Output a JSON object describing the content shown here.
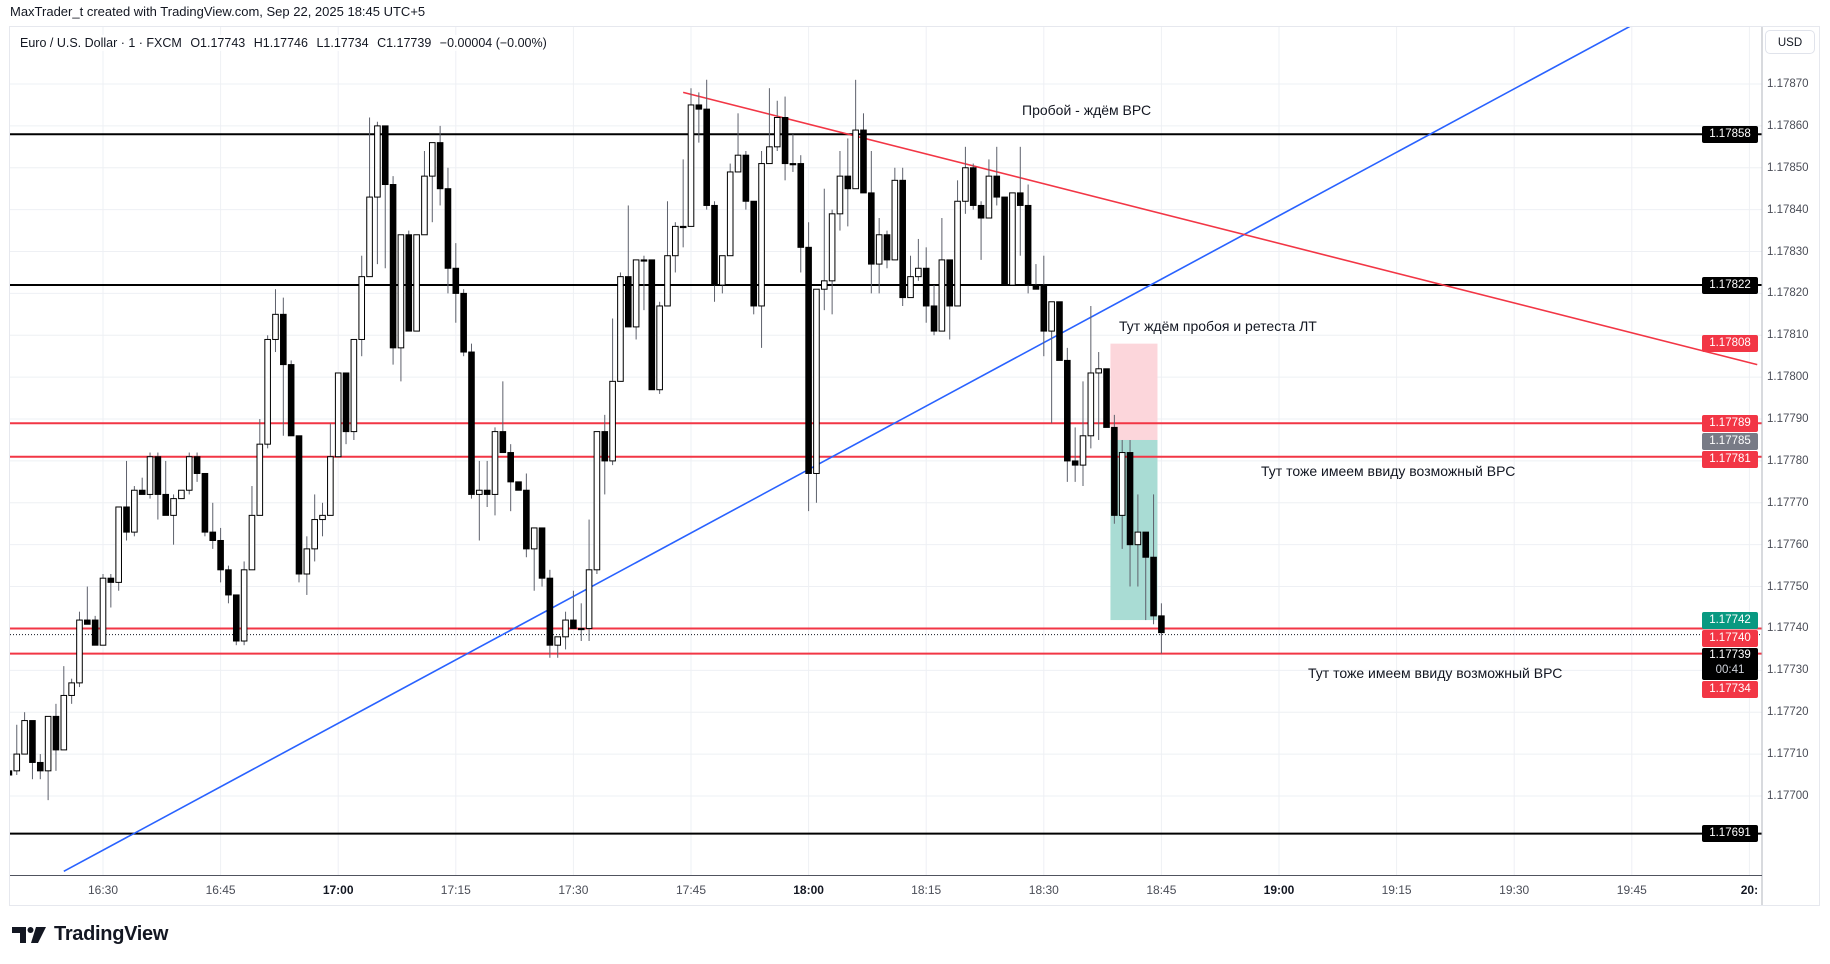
{
  "attribution": "MaxTrader_t created with TradingView.com, Sep 22, 2025 18:45 UTC+5",
  "legend": {
    "symbol": "Euro / U.S. Dollar · 1 · FXCM",
    "open": "O1.17743",
    "high": "H1.17746",
    "low": "L1.17734",
    "close": "C1.17739",
    "change": "−0.00004 (−0.00%)"
  },
  "currency_button": "USD",
  "brand": "TradingView",
  "colors": {
    "bull_body": "#ffffff",
    "bear_body": "#000000",
    "wick": "#5d606b",
    "level_black": "#000000",
    "level_red": "#f23645",
    "trend_blue": "#2962ff",
    "trend_red": "#f23645",
    "grid": "#eef0f4",
    "stop_zone": "#fcd6db",
    "target_zone": "#a9dcd4",
    "tag_green": "#089981",
    "tag_gray": "#787b86"
  },
  "chart_data": {
    "type": "candlestick",
    "symbol": "EURUSD",
    "interval_min": 1,
    "start_time": "16:18",
    "ylim": [
      1.1767,
      1.1789
    ],
    "price_ticks": [
      "1.17870",
      "1.17860",
      "1.17850",
      "1.17840",
      "1.17830",
      "1.17820",
      "1.17810",
      "1.17800",
      "1.17790",
      "1.17780",
      "1.17770",
      "1.17760",
      "1.17750",
      "1.17740",
      "1.17730",
      "1.17720",
      "1.17710",
      "1.17700"
    ],
    "time_labels": [
      {
        "text": "16:30",
        "time": "16:30",
        "bold": false
      },
      {
        "text": "16:45",
        "time": "16:45",
        "bold": false
      },
      {
        "text": "17:00",
        "time": "17:00",
        "bold": true
      },
      {
        "text": "17:15",
        "time": "17:15",
        "bold": false
      },
      {
        "text": "17:30",
        "time": "17:30",
        "bold": false
      },
      {
        "text": "17:45",
        "time": "17:45",
        "bold": false
      },
      {
        "text": "18:00",
        "time": "18:00",
        "bold": true
      },
      {
        "text": "18:15",
        "time": "18:15",
        "bold": false
      },
      {
        "text": "18:30",
        "time": "18:30",
        "bold": false
      },
      {
        "text": "18:45",
        "time": "18:45",
        "bold": false
      },
      {
        "text": "19:00",
        "time": "19:00",
        "bold": true
      },
      {
        "text": "19:15",
        "time": "19:15",
        "bold": false
      },
      {
        "text": "19:30",
        "time": "19:30",
        "bold": false
      },
      {
        "text": "19:45",
        "time": "19:45",
        "bold": false
      },
      {
        "text": "20:",
        "time": "20:00",
        "bold": true
      }
    ],
    "ohlc": [
      [
        1.17706,
        1.17707,
        1.17704,
        1.17705
      ],
      [
        1.17706,
        1.17717,
        1.17705,
        1.1771
      ],
      [
        1.1771,
        1.1772,
        1.1771,
        1.17718
      ],
      [
        1.17718,
        1.17718,
        1.17704,
        1.17708
      ],
      [
        1.17708,
        1.1771,
        1.17704,
        1.17706
      ],
      [
        1.17706,
        1.17719,
        1.17699,
        1.17719
      ],
      [
        1.17719,
        1.17722,
        1.17706,
        1.17711
      ],
      [
        1.17711,
        1.17731,
        1.17711,
        1.17724
      ],
      [
        1.17724,
        1.17728,
        1.17722,
        1.17727
      ],
      [
        1.17727,
        1.17744,
        1.17726,
        1.17742
      ],
      [
        1.17742,
        1.1775,
        1.17741,
        1.17741
      ],
      [
        1.17742,
        1.17743,
        1.17736,
        1.17736
      ],
      [
        1.17736,
        1.17753,
        1.17736,
        1.17752
      ],
      [
        1.17752,
        1.17753,
        1.17745,
        1.17751
      ],
      [
        1.17751,
        1.17769,
        1.17749,
        1.17769
      ],
      [
        1.17769,
        1.1778,
        1.17761,
        1.17763
      ],
      [
        1.17763,
        1.17774,
        1.17762,
        1.17773
      ],
      [
        1.17773,
        1.17776,
        1.17772,
        1.17772
      ],
      [
        1.17772,
        1.17782,
        1.17771,
        1.17781
      ],
      [
        1.17781,
        1.17782,
        1.17766,
        1.17772
      ],
      [
        1.17772,
        1.1778,
        1.17767,
        1.17767
      ],
      [
        1.17767,
        1.17772,
        1.1776,
        1.17771
      ],
      [
        1.17771,
        1.17773,
        1.17771,
        1.17773
      ],
      [
        1.17773,
        1.17782,
        1.17772,
        1.17781
      ],
      [
        1.17781,
        1.17782,
        1.17775,
        1.17777
      ],
      [
        1.17777,
        1.17777,
        1.17762,
        1.17763
      ],
      [
        1.17763,
        1.1777,
        1.17759,
        1.17761
      ],
      [
        1.17761,
        1.17764,
        1.17751,
        1.17754
      ],
      [
        1.17754,
        1.17755,
        1.17746,
        1.17748
      ],
      [
        1.17748,
        1.17748,
        1.17736,
        1.17737
      ],
      [
        1.17737,
        1.17756,
        1.17736,
        1.17754
      ],
      [
        1.17754,
        1.17774,
        1.17754,
        1.17767
      ],
      [
        1.17767,
        1.1779,
        1.17767,
        1.17784
      ],
      [
        1.17784,
        1.1781,
        1.17783,
        1.17809
      ],
      [
        1.17809,
        1.17821,
        1.17806,
        1.17815
      ],
      [
        1.17815,
        1.17819,
        1.17786,
        1.17803
      ],
      [
        1.17803,
        1.17804,
        1.17786,
        1.17786
      ],
      [
        1.17786,
        1.17786,
        1.17751,
        1.17753
      ],
      [
        1.17753,
        1.17762,
        1.17748,
        1.17759
      ],
      [
        1.17759,
        1.17772,
        1.17756,
        1.17766
      ],
      [
        1.17766,
        1.1777,
        1.17762,
        1.17767
      ],
      [
        1.17767,
        1.17789,
        1.17767,
        1.17781
      ],
      [
        1.17781,
        1.17801,
        1.17781,
        1.17801
      ],
      [
        1.17801,
        1.17801,
        1.17784,
        1.17787
      ],
      [
        1.17787,
        1.17809,
        1.17785,
        1.17809
      ],
      [
        1.17809,
        1.17829,
        1.17805,
        1.17824
      ],
      [
        1.17824,
        1.17862,
        1.17824,
        1.17843
      ],
      [
        1.17843,
        1.17861,
        1.17827,
        1.1786
      ],
      [
        1.1786,
        1.1786,
        1.17826,
        1.17846
      ],
      [
        1.17846,
        1.17848,
        1.17803,
        1.17807
      ],
      [
        1.17807,
        1.17834,
        1.17799,
        1.17834
      ],
      [
        1.17834,
        1.17835,
        1.17811,
        1.17811
      ],
      [
        1.17811,
        1.17834,
        1.17811,
        1.17834
      ],
      [
        1.17834,
        1.17854,
        1.17834,
        1.17848
      ],
      [
        1.17848,
        1.17856,
        1.17837,
        1.17856
      ],
      [
        1.17856,
        1.1786,
        1.17841,
        1.17845
      ],
      [
        1.17845,
        1.1785,
        1.1782,
        1.17826
      ],
      [
        1.17826,
        1.17832,
        1.17813,
        1.1782
      ],
      [
        1.1782,
        1.17821,
        1.17805,
        1.17806
      ],
      [
        1.17806,
        1.17808,
        1.17771,
        1.17772
      ],
      [
        1.17772,
        1.1778,
        1.17761,
        1.17773
      ],
      [
        1.17773,
        1.1778,
        1.17769,
        1.17772
      ],
      [
        1.17772,
        1.17788,
        1.17767,
        1.17787
      ],
      [
        1.17787,
        1.17799,
        1.17782,
        1.17782
      ],
      [
        1.17782,
        1.17784,
        1.17768,
        1.17775
      ],
      [
        1.17775,
        1.17775,
        1.17773,
        1.17773
      ],
      [
        1.17773,
        1.17777,
        1.17757,
        1.17759
      ],
      [
        1.17759,
        1.17764,
        1.17749,
        1.17764
      ],
      [
        1.17764,
        1.17764,
        1.1775,
        1.17752
      ],
      [
        1.17752,
        1.17754,
        1.17733,
        1.17736
      ],
      [
        1.17736,
        1.17738,
        1.17733,
        1.17738
      ],
      [
        1.17738,
        1.17744,
        1.17735,
        1.17742
      ],
      [
        1.17742,
        1.17749,
        1.1774,
        1.1774
      ],
      [
        1.1774,
        1.17746,
        1.17737,
        1.1774
      ],
      [
        1.1774,
        1.17766,
        1.17737,
        1.17754
      ],
      [
        1.17754,
        1.17787,
        1.17753,
        1.17787
      ],
      [
        1.17787,
        1.17791,
        1.17772,
        1.1778
      ],
      [
        1.1778,
        1.17814,
        1.17779,
        1.17799
      ],
      [
        1.17799,
        1.17825,
        1.17799,
        1.17824
      ],
      [
        1.17824,
        1.17841,
        1.17812,
        1.17812
      ],
      [
        1.17812,
        1.17828,
        1.17809,
        1.17828
      ],
      [
        1.17828,
        1.17829,
        1.17816,
        1.17828
      ],
      [
        1.17828,
        1.17828,
        1.17797,
        1.17797
      ],
      [
        1.17797,
        1.17818,
        1.17796,
        1.17817
      ],
      [
        1.17817,
        1.17842,
        1.17817,
        1.17829
      ],
      [
        1.17829,
        1.17837,
        1.17825,
        1.17836
      ],
      [
        1.17836,
        1.17852,
        1.17831,
        1.17836
      ],
      [
        1.17836,
        1.17869,
        1.17836,
        1.17865
      ],
      [
        1.17865,
        1.17868,
        1.17856,
        1.17864
      ],
      [
        1.17864,
        1.17871,
        1.1784,
        1.17841
      ],
      [
        1.17841,
        1.17842,
        1.17818,
        1.17822
      ],
      [
        1.17822,
        1.17829,
        1.1782,
        1.17829
      ],
      [
        1.17829,
        1.17851,
        1.17829,
        1.17849
      ],
      [
        1.17849,
        1.17863,
        1.17849,
        1.17853
      ],
      [
        1.17853,
        1.17854,
        1.1784,
        1.17842
      ],
      [
        1.17842,
        1.17842,
        1.17815,
        1.17817
      ],
      [
        1.17817,
        1.17854,
        1.17807,
        1.17851
      ],
      [
        1.17851,
        1.17869,
        1.17851,
        1.17855
      ],
      [
        1.17855,
        1.17866,
        1.17854,
        1.17862
      ],
      [
        1.17862,
        1.17867,
        1.17847,
        1.17851
      ],
      [
        1.17851,
        1.17858,
        1.17849,
        1.17851
      ],
      [
        1.17851,
        1.17853,
        1.17825,
        1.17831
      ],
      [
        1.17831,
        1.17837,
        1.17768,
        1.17777
      ],
      [
        1.17777,
        1.17821,
        1.1777,
        1.17821
      ],
      [
        1.17821,
        1.17845,
        1.17816,
        1.17823
      ],
      [
        1.17823,
        1.1784,
        1.17815,
        1.17839
      ],
      [
        1.17839,
        1.17854,
        1.17835,
        1.17848
      ],
      [
        1.17848,
        1.17857,
        1.17836,
        1.17845
      ],
      [
        1.17845,
        1.17871,
        1.17845,
        1.17859
      ],
      [
        1.17859,
        1.17863,
        1.17844,
        1.17844
      ],
      [
        1.17844,
        1.17854,
        1.1782,
        1.17827
      ],
      [
        1.17827,
        1.17838,
        1.1782,
        1.17834
      ],
      [
        1.17834,
        1.17835,
        1.17826,
        1.17828
      ],
      [
        1.17828,
        1.1785,
        1.17828,
        1.17847
      ],
      [
        1.17847,
        1.1785,
        1.17817,
        1.17819
      ],
      [
        1.17819,
        1.17829,
        1.17819,
        1.17824
      ],
      [
        1.17824,
        1.17833,
        1.17823,
        1.17826
      ],
      [
        1.17826,
        1.17831,
        1.17813,
        1.17817
      ],
      [
        1.17817,
        1.17822,
        1.1781,
        1.17811
      ],
      [
        1.17811,
        1.17838,
        1.17811,
        1.17828
      ],
      [
        1.17828,
        1.17828,
        1.17809,
        1.17817
      ],
      [
        1.17817,
        1.17847,
        1.17817,
        1.17842
      ],
      [
        1.17842,
        1.17855,
        1.17839,
        1.1785
      ],
      [
        1.1785,
        1.17851,
        1.1784,
        1.17841
      ],
      [
        1.17841,
        1.17842,
        1.17828,
        1.17838
      ],
      [
        1.17838,
        1.17852,
        1.17838,
        1.17848
      ],
      [
        1.17848,
        1.17855,
        1.17841,
        1.17843
      ],
      [
        1.17843,
        1.17843,
        1.17822,
        1.17822
      ],
      [
        1.17822,
        1.17844,
        1.17822,
        1.17844
      ],
      [
        1.17844,
        1.17855,
        1.17829,
        1.17841
      ],
      [
        1.17841,
        1.17846,
        1.1782,
        1.17822
      ],
      [
        1.17822,
        1.17827,
        1.17821,
        1.17821
      ],
      [
        1.17822,
        1.17829,
        1.17805,
        1.17811
      ],
      [
        1.17811,
        1.17818,
        1.17789,
        1.17818
      ],
      [
        1.17818,
        1.17818,
        1.17804,
        1.17804
      ],
      [
        1.17804,
        1.17807,
        1.17775,
        1.1778
      ],
      [
        1.1778,
        1.17788,
        1.17775,
        1.17779
      ],
      [
        1.17779,
        1.17799,
        1.17774,
        1.17786
      ],
      [
        1.17786,
        1.17817,
        1.17783,
        1.17801
      ],
      [
        1.17801,
        1.17806,
        1.17785,
        1.17802
      ],
      [
        1.17802,
        1.17802,
        1.17788,
        1.17788
      ],
      [
        1.17788,
        1.17791,
        1.17765,
        1.17767
      ],
      [
        1.17767,
        1.17785,
        1.17759,
        1.17782
      ],
      [
        1.17782,
        1.17785,
        1.1775,
        1.1776
      ],
      [
        1.1776,
        1.17772,
        1.1775,
        1.17763
      ],
      [
        1.17763,
        1.17763,
        1.17742,
        1.17757
      ],
      [
        1.17757,
        1.17772,
        1.17741,
        1.17743
      ],
      [
        1.17743,
        1.17746,
        1.17734,
        1.17739
      ]
    ],
    "horizontal_levels": [
      {
        "price": 1.17858,
        "color": "black"
      },
      {
        "price": 1.17822,
        "color": "black"
      },
      {
        "price": 1.17789,
        "color": "red"
      },
      {
        "price": 1.17781,
        "color": "red"
      },
      {
        "price": 1.1774,
        "color": "red"
      },
      {
        "price": 1.17734,
        "color": "red"
      },
      {
        "price": 1.17691,
        "color": "black"
      }
    ],
    "current_price": 1.17739,
    "trendlines": [
      {
        "name": "support-trendline",
        "color": "blue",
        "from": {
          "time": "16:25",
          "price": 1.17682
        },
        "to": {
          "time": "19:45",
          "price": 1.17884
        }
      },
      {
        "name": "resistance-trendline",
        "color": "red",
        "from": {
          "time": "17:44",
          "price": 1.17868
        },
        "to": {
          "time": "20:01",
          "price": 1.17803
        }
      }
    ],
    "short_position": {
      "start": "18:39",
      "end": "18:44",
      "stop": 1.17808,
      "entry": 1.17785,
      "target": 1.17742
    },
    "price_tags": [
      {
        "text": "1.17858",
        "price": 1.17858,
        "kind": "black"
      },
      {
        "text": "1.17822",
        "price": 1.17822,
        "kind": "black"
      },
      {
        "text": "1.17808",
        "price": 1.17808,
        "kind": "red"
      },
      {
        "text": "1.17789",
        "price": 1.17789,
        "kind": "red"
      },
      {
        "text": "1.17785",
        "price": 1.17785,
        "kind": "gray"
      },
      {
        "text": "1.17781",
        "price": 1.17781,
        "kind": "red"
      },
      {
        "text": "1.17742",
        "price": 1.17742,
        "kind": "green"
      },
      {
        "text": "1.17740",
        "price": 1.1774,
        "kind": "red"
      },
      {
        "text": "1.17739",
        "sub": "00:41",
        "price": 1.17739,
        "kind": "black"
      },
      {
        "text": "1.17734",
        "price": 1.17734,
        "kind": "red"
      },
      {
        "text": "1.17691",
        "price": 1.17691,
        "kind": "black"
      }
    ]
  },
  "annotations": [
    {
      "text": "Пробой - ждём ВРС"
    },
    {
      "text": "Тут ждём пробоя и ретеста ЛТ"
    },
    {
      "text": "Тут тоже имеем ввиду возможный ВРС"
    },
    {
      "text": "Тут тоже имеем ввиду возможный ВРС"
    }
  ]
}
